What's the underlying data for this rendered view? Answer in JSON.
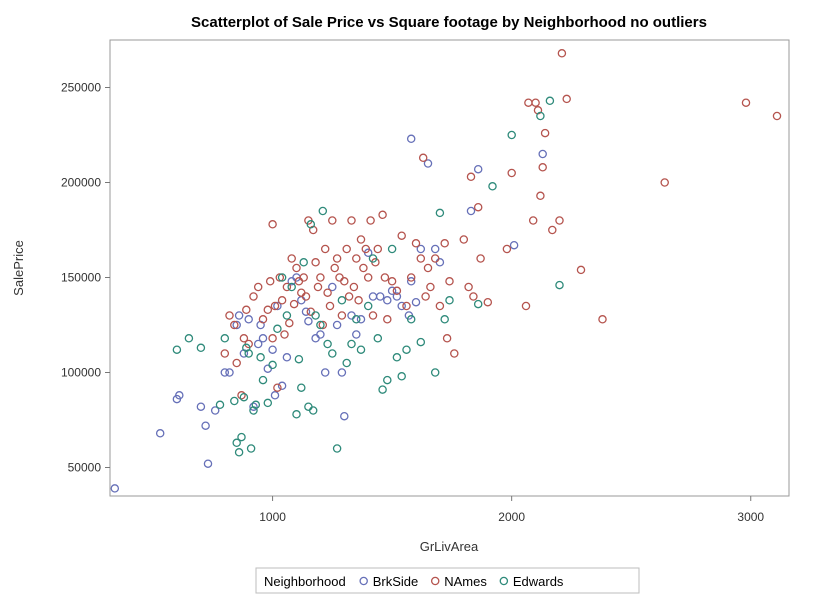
{
  "chart_data": {
    "type": "scatter",
    "title": "Scatterplot of Sale Price vs Square footage by Neighborhood no outliers",
    "xlabel": "GrLivArea",
    "ylabel": "SalePrice",
    "xlim": [
      320,
      3160
    ],
    "ylim": [
      35000,
      275000
    ],
    "xticks": [
      1000,
      2000,
      3000
    ],
    "yticks": [
      50000,
      100000,
      150000,
      200000,
      250000
    ],
    "grid": false,
    "legend": {
      "title": "Neighborhood",
      "position": "bottom-center"
    },
    "series": [
      {
        "name": "BrkSide",
        "color": "#6670b8",
        "points": [
          [
            340,
            39000
          ],
          [
            530,
            68000
          ],
          [
            600,
            86000
          ],
          [
            610,
            88000
          ],
          [
            700,
            82000
          ],
          [
            720,
            72000
          ],
          [
            730,
            52000
          ],
          [
            760,
            80000
          ],
          [
            800,
            100000
          ],
          [
            820,
            100000
          ],
          [
            850,
            125000
          ],
          [
            860,
            130000
          ],
          [
            880,
            110000
          ],
          [
            900,
            128000
          ],
          [
            920,
            82000
          ],
          [
            940,
            115000
          ],
          [
            950,
            125000
          ],
          [
            960,
            118000
          ],
          [
            980,
            102000
          ],
          [
            1000,
            112000
          ],
          [
            1010,
            88000
          ],
          [
            1020,
            135000
          ],
          [
            1040,
            93000
          ],
          [
            1060,
            108000
          ],
          [
            1080,
            148000
          ],
          [
            1100,
            150000
          ],
          [
            1120,
            138000
          ],
          [
            1140,
            132000
          ],
          [
            1150,
            127000
          ],
          [
            1180,
            118000
          ],
          [
            1200,
            120000
          ],
          [
            1220,
            100000
          ],
          [
            1250,
            145000
          ],
          [
            1270,
            125000
          ],
          [
            1290,
            100000
          ],
          [
            1300,
            77000
          ],
          [
            1330,
            130000
          ],
          [
            1350,
            120000
          ],
          [
            1370,
            128000
          ],
          [
            1400,
            163000
          ],
          [
            1420,
            140000
          ],
          [
            1450,
            140000
          ],
          [
            1480,
            138000
          ],
          [
            1500,
            143000
          ],
          [
            1520,
            140000
          ],
          [
            1540,
            135000
          ],
          [
            1570,
            130000
          ],
          [
            1580,
            148000
          ],
          [
            1580,
            223000
          ],
          [
            1600,
            137000
          ],
          [
            1620,
            165000
          ],
          [
            1650,
            210000
          ],
          [
            1680,
            165000
          ],
          [
            1700,
            158000
          ],
          [
            1830,
            185000
          ],
          [
            1860,
            207000
          ],
          [
            2010,
            167000
          ],
          [
            2130,
            215000
          ]
        ]
      },
      {
        "name": "NAmes",
        "color": "#b5544e",
        "points": [
          [
            800,
            110000
          ],
          [
            820,
            130000
          ],
          [
            840,
            125000
          ],
          [
            850,
            105000
          ],
          [
            870,
            88000
          ],
          [
            880,
            118000
          ],
          [
            890,
            133000
          ],
          [
            900,
            115000
          ],
          [
            920,
            140000
          ],
          [
            940,
            145000
          ],
          [
            960,
            128000
          ],
          [
            980,
            133000
          ],
          [
            990,
            148000
          ],
          [
            1000,
            118000
          ],
          [
            1000,
            178000
          ],
          [
            1010,
            135000
          ],
          [
            1020,
            92000
          ],
          [
            1030,
            150000
          ],
          [
            1040,
            138000
          ],
          [
            1050,
            120000
          ],
          [
            1060,
            145000
          ],
          [
            1070,
            126000
          ],
          [
            1080,
            160000
          ],
          [
            1090,
            136000
          ],
          [
            1100,
            155000
          ],
          [
            1110,
            148000
          ],
          [
            1120,
            142000
          ],
          [
            1130,
            150000
          ],
          [
            1140,
            140000
          ],
          [
            1150,
            180000
          ],
          [
            1160,
            132000
          ],
          [
            1170,
            175000
          ],
          [
            1180,
            158000
          ],
          [
            1190,
            145000
          ],
          [
            1200,
            150000
          ],
          [
            1210,
            125000
          ],
          [
            1220,
            165000
          ],
          [
            1230,
            142000
          ],
          [
            1240,
            135000
          ],
          [
            1250,
            180000
          ],
          [
            1260,
            155000
          ],
          [
            1270,
            160000
          ],
          [
            1280,
            150000
          ],
          [
            1290,
            130000
          ],
          [
            1300,
            148000
          ],
          [
            1310,
            165000
          ],
          [
            1320,
            140000
          ],
          [
            1330,
            180000
          ],
          [
            1340,
            145000
          ],
          [
            1350,
            160000
          ],
          [
            1360,
            138000
          ],
          [
            1370,
            170000
          ],
          [
            1380,
            155000
          ],
          [
            1390,
            165000
          ],
          [
            1400,
            150000
          ],
          [
            1410,
            180000
          ],
          [
            1420,
            130000
          ],
          [
            1430,
            158000
          ],
          [
            1440,
            165000
          ],
          [
            1460,
            183000
          ],
          [
            1470,
            150000
          ],
          [
            1480,
            128000
          ],
          [
            1500,
            148000
          ],
          [
            1520,
            143000
          ],
          [
            1540,
            172000
          ],
          [
            1560,
            135000
          ],
          [
            1580,
            150000
          ],
          [
            1600,
            168000
          ],
          [
            1620,
            160000
          ],
          [
            1630,
            213000
          ],
          [
            1640,
            140000
          ],
          [
            1650,
            155000
          ],
          [
            1660,
            145000
          ],
          [
            1680,
            160000
          ],
          [
            1700,
            135000
          ],
          [
            1720,
            168000
          ],
          [
            1730,
            118000
          ],
          [
            1740,
            148000
          ],
          [
            1760,
            110000
          ],
          [
            1800,
            170000
          ],
          [
            1820,
            145000
          ],
          [
            1830,
            203000
          ],
          [
            1840,
            140000
          ],
          [
            1860,
            187000
          ],
          [
            1870,
            160000
          ],
          [
            1900,
            137000
          ],
          [
            1980,
            165000
          ],
          [
            2000,
            205000
          ],
          [
            2060,
            135000
          ],
          [
            2070,
            242000
          ],
          [
            2090,
            180000
          ],
          [
            2100,
            242000
          ],
          [
            2110,
            238000
          ],
          [
            2120,
            193000
          ],
          [
            2130,
            208000
          ],
          [
            2140,
            226000
          ],
          [
            2170,
            175000
          ],
          [
            2200,
            180000
          ],
          [
            2210,
            268000
          ],
          [
            2230,
            244000
          ],
          [
            2290,
            154000
          ],
          [
            2380,
            128000
          ],
          [
            2640,
            200000
          ],
          [
            2980,
            242000
          ],
          [
            3110,
            235000
          ]
        ]
      },
      {
        "name": "Edwards",
        "color": "#2e8a7a",
        "points": [
          [
            600,
            112000
          ],
          [
            650,
            118000
          ],
          [
            700,
            113000
          ],
          [
            780,
            83000
          ],
          [
            800,
            118000
          ],
          [
            840,
            85000
          ],
          [
            850,
            63000
          ],
          [
            860,
            58000
          ],
          [
            870,
            66000
          ],
          [
            880,
            87000
          ],
          [
            890,
            113000
          ],
          [
            900,
            110000
          ],
          [
            910,
            60000
          ],
          [
            920,
            80000
          ],
          [
            930,
            83000
          ],
          [
            950,
            108000
          ],
          [
            960,
            96000
          ],
          [
            980,
            84000
          ],
          [
            1000,
            104000
          ],
          [
            1020,
            123000
          ],
          [
            1040,
            150000
          ],
          [
            1060,
            130000
          ],
          [
            1080,
            145000
          ],
          [
            1100,
            78000
          ],
          [
            1110,
            107000
          ],
          [
            1120,
            92000
          ],
          [
            1130,
            158000
          ],
          [
            1150,
            82000
          ],
          [
            1160,
            178000
          ],
          [
            1170,
            80000
          ],
          [
            1180,
            130000
          ],
          [
            1200,
            125000
          ],
          [
            1210,
            185000
          ],
          [
            1230,
            115000
          ],
          [
            1250,
            110000
          ],
          [
            1270,
            60000
          ],
          [
            1290,
            138000
          ],
          [
            1310,
            105000
          ],
          [
            1330,
            115000
          ],
          [
            1350,
            128000
          ],
          [
            1370,
            112000
          ],
          [
            1400,
            135000
          ],
          [
            1420,
            160000
          ],
          [
            1440,
            118000
          ],
          [
            1460,
            91000
          ],
          [
            1480,
            96000
          ],
          [
            1500,
            165000
          ],
          [
            1520,
            108000
          ],
          [
            1540,
            98000
          ],
          [
            1560,
            112000
          ],
          [
            1580,
            128000
          ],
          [
            1620,
            116000
          ],
          [
            1680,
            100000
          ],
          [
            1700,
            184000
          ],
          [
            1720,
            128000
          ],
          [
            1740,
            138000
          ],
          [
            1860,
            136000
          ],
          [
            1920,
            198000
          ],
          [
            2000,
            225000
          ],
          [
            2120,
            235000
          ],
          [
            2160,
            243000
          ],
          [
            2200,
            146000
          ]
        ]
      }
    ]
  }
}
